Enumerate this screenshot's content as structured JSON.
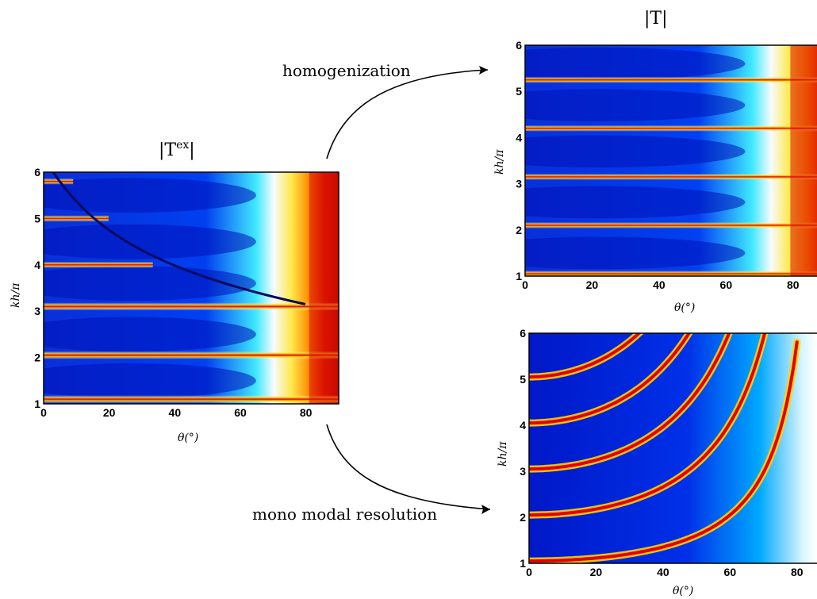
{
  "annotations": {
    "top_arrow_label": "homogenization",
    "bottom_arrow_label": "mono modal resolution"
  },
  "panels": {
    "left": {
      "title_base": "|T",
      "title_sup": "ex",
      "title_end": "|",
      "xlabel": "θ(°)",
      "ylabel": "kh/π",
      "xticks": [
        "0",
        "20",
        "40",
        "60",
        "80"
      ],
      "yticks": [
        "1",
        "2",
        "3",
        "4",
        "5",
        "6"
      ]
    },
    "top_right": {
      "title": "|T|",
      "xlabel": "θ(°)",
      "ylabel": "kh/π",
      "xticks": [
        "0",
        "20",
        "40",
        "60",
        "80"
      ],
      "yticks": [
        "1",
        "2",
        "3",
        "4",
        "5",
        "6"
      ]
    },
    "bottom_right": {
      "xlabel": "θ(°)",
      "ylabel": "kh/π",
      "xticks": [
        "0",
        "20",
        "40",
        "60",
        "80"
      ],
      "yticks": [
        "1",
        "2",
        "3",
        "4",
        "5",
        "6"
      ]
    }
  },
  "colormap": [
    "#00008f",
    "#0050ff",
    "#00dfff",
    "#ffffff",
    "#fff25a",
    "#ffb000",
    "#e01000",
    "#8a0000"
  ]
}
